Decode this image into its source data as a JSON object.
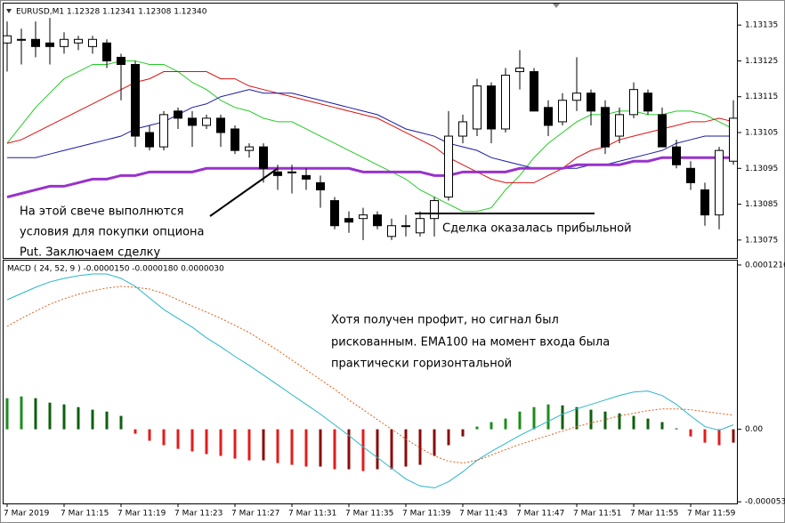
{
  "chart_data": [
    {
      "type": "candlestick",
      "title": "EURUSD,M1  1.12328 1.12341 1.12308 1.12340",
      "categories": [
        "7 Mar 2019",
        null,
        null,
        null,
        "7 Mar 11:15",
        null,
        null,
        null,
        "7 Mar 11:19",
        null,
        null,
        null,
        "7 Mar 11:23",
        null,
        null,
        null,
        "7 Mar 11:27",
        null,
        null,
        null,
        "7 Mar 11:31",
        null,
        null,
        null,
        "7 Mar 11:35",
        null,
        null,
        null,
        "7 Mar 11:39",
        null,
        null,
        null,
        "7 Mar 11:43",
        null,
        null,
        null,
        "7 Mar 11:47",
        null,
        null,
        null,
        "7 Mar 11:51",
        null,
        null,
        null,
        "7 Mar 11:55",
        null,
        null,
        null,
        "7 Mar 11:59",
        null,
        null,
        null
      ],
      "ohlc": {
        "open": [
          1.1313,
          1.13131,
          1.13131,
          1.1313,
          1.13129,
          1.1313,
          1.13129,
          1.1313,
          1.13126,
          1.13124,
          1.13105,
          1.13101,
          1.13111,
          1.13109,
          1.13107,
          1.13109,
          1.13106,
          1.131,
          1.13101,
          1.13094,
          1.13094,
          1.13093,
          1.13091,
          1.13086,
          1.13081,
          1.13081,
          1.13082,
          1.13076,
          1.13079,
          1.13077,
          1.13081,
          1.13087,
          1.13104,
          1.13106,
          1.13118,
          1.13106,
          1.13122,
          1.13122,
          1.13112,
          1.13108,
          1.13114,
          1.13116,
          1.13112,
          1.13104,
          1.1311,
          1.13116,
          1.1311,
          1.13101,
          1.13095,
          1.13089,
          1.13082,
          1.13097
        ],
        "high": [
          1.13136,
          1.13134,
          1.13136,
          1.13137,
          1.13133,
          1.13132,
          1.13132,
          1.13131,
          1.13127,
          1.13125,
          1.13107,
          1.13111,
          1.13112,
          1.13111,
          1.1311,
          1.1311,
          1.13107,
          1.13102,
          1.13102,
          1.13096,
          1.13096,
          1.13095,
          1.13093,
          1.13087,
          1.13083,
          1.13084,
          1.13083,
          1.13081,
          1.13082,
          1.13083,
          1.13087,
          1.13111,
          1.1311,
          1.1312,
          1.13119,
          1.13123,
          1.13128,
          1.13123,
          1.13114,
          1.13116,
          1.13126,
          1.13117,
          1.13114,
          1.13112,
          1.13119,
          1.13117,
          1.13112,
          1.13103,
          1.13097,
          1.13091,
          1.13101,
          1.13114
        ],
        "low": [
          1.13122,
          1.13124,
          1.13126,
          1.13124,
          1.13127,
          1.13128,
          1.13127,
          1.13123,
          1.13114,
          1.13101,
          1.131,
          1.131,
          1.13106,
          1.13101,
          1.13106,
          1.13101,
          1.13099,
          1.13098,
          1.13091,
          1.13089,
          1.13088,
          1.13089,
          1.13084,
          1.13078,
          1.13077,
          1.13075,
          1.13078,
          1.13075,
          1.13076,
          1.13076,
          1.13076,
          1.13086,
          1.13102,
          1.13104,
          1.13102,
          1.13105,
          1.13117,
          1.13111,
          1.13104,
          1.13107,
          1.13111,
          1.13107,
          1.13099,
          1.13102,
          1.13109,
          1.1311,
          1.13101,
          1.13095,
          1.13089,
          1.13079,
          1.13078,
          1.13096
        ],
        "close": [
          1.13132,
          1.13131,
          1.13129,
          1.13129,
          1.13131,
          1.13131,
          1.13131,
          1.13125,
          1.13124,
          1.13104,
          1.13101,
          1.1311,
          1.13109,
          1.13107,
          1.13109,
          1.13105,
          1.131,
          1.13101,
          1.13095,
          1.13093,
          1.13094,
          1.13092,
          1.13089,
          1.13079,
          1.1308,
          1.13082,
          1.13079,
          1.13079,
          1.13079,
          1.13081,
          1.13086,
          1.13104,
          1.13108,
          1.13118,
          1.13106,
          1.13121,
          1.13123,
          1.13111,
          1.13107,
          1.13114,
          1.13116,
          1.13111,
          1.13101,
          1.1311,
          1.13117,
          1.13111,
          1.13101,
          1.13096,
          1.13091,
          1.13082,
          1.131,
          1.13109
        ]
      },
      "up_color": "#ffffff",
      "down_color": "#000000",
      "lines": [
        {
          "color": "#22cc22",
          "values": [
            1.13102,
            1.13107,
            1.13112,
            1.13116,
            1.1312,
            1.13122,
            1.13124,
            1.13124,
            1.13125,
            1.13125,
            1.13124,
            1.13124,
            1.13122,
            1.13119,
            1.13117,
            1.13114,
            1.13112,
            1.13111,
            1.13109,
            1.13108,
            1.13108,
            1.13106,
            1.13104,
            1.13102,
            1.131,
            1.13098,
            1.13096,
            1.13094,
            1.13092,
            1.13089,
            1.13087,
            1.13085,
            1.13083,
            1.13083,
            1.13084,
            1.13089,
            1.13093,
            1.13098,
            1.13102,
            1.13105,
            1.13108,
            1.1311,
            1.1311,
            1.13111,
            1.13111,
            1.1311,
            1.1311,
            1.13111,
            1.13111,
            1.1311,
            1.13108,
            1.13106
          ]
        },
        {
          "color": "#dd1111",
          "values": [
            1.13102,
            1.13103,
            1.13105,
            1.13107,
            1.13109,
            1.13111,
            1.13113,
            1.13115,
            1.13117,
            1.13119,
            1.1312,
            1.13122,
            1.13122,
            1.13122,
            1.13122,
            1.1312,
            1.1312,
            1.13118,
            1.13117,
            1.13116,
            1.13115,
            1.13114,
            1.13113,
            1.13112,
            1.13111,
            1.1311,
            1.13109,
            1.13107,
            1.13105,
            1.13103,
            1.13101,
            1.13098,
            1.13096,
            1.13094,
            1.13092,
            1.13091,
            1.13091,
            1.13091,
            1.13093,
            1.13095,
            1.13098,
            1.131,
            1.13101,
            1.13103,
            1.13104,
            1.13105,
            1.13106,
            1.13107,
            1.13108,
            1.13108,
            1.13109,
            1.13108
          ]
        },
        {
          "color": "#1a1aa8",
          "values": [
            1.13098,
            1.13098,
            1.13098,
            1.13099,
            1.131,
            1.13101,
            1.13102,
            1.13103,
            1.13104,
            1.13106,
            1.13107,
            1.13108,
            1.1311,
            1.13112,
            1.13113,
            1.13115,
            1.13116,
            1.13117,
            1.13116,
            1.13116,
            1.13116,
            1.13115,
            1.13114,
            1.13113,
            1.13112,
            1.13111,
            1.1311,
            1.13108,
            1.13106,
            1.13105,
            1.13104,
            1.13102,
            1.13101,
            1.131,
            1.13098,
            1.13097,
            1.13096,
            1.13095,
            1.13095,
            1.13095,
            1.13095,
            1.13096,
            1.13096,
            1.13097,
            1.13098,
            1.13099,
            1.131,
            1.13102,
            1.13103,
            1.13104,
            1.13104,
            1.13104
          ]
        },
        {
          "color": "#9932cc",
          "width": 3,
          "values": [
            1.13087,
            1.13088,
            1.13089,
            1.1309,
            1.1309,
            1.13091,
            1.13092,
            1.13092,
            1.13093,
            1.13093,
            1.13094,
            1.13094,
            1.13094,
            1.13094,
            1.13095,
            1.13095,
            1.13095,
            1.13095,
            1.13095,
            1.13095,
            1.13095,
            1.13095,
            1.13095,
            1.13095,
            1.13095,
            1.13094,
            1.13094,
            1.13094,
            1.13094,
            1.13094,
            1.13093,
            1.13093,
            1.13094,
            1.13094,
            1.13094,
            1.13094,
            1.13095,
            1.13095,
            1.13095,
            1.13095,
            1.13096,
            1.13096,
            1.13096,
            1.13096,
            1.13097,
            1.13097,
            1.13098,
            1.13098,
            1.13098,
            1.13098,
            1.13098,
            1.13098
          ]
        }
      ],
      "ylim": [
        1.1307,
        1.13141
      ],
      "yticks": [
        1.13135,
        1.13125,
        1.13115,
        1.13105,
        1.13095,
        1.13085,
        1.13075
      ],
      "annotations": [
        "На этой свече выполнются",
        "условия для покупки опциона",
        "Put. Заключаем сделку",
        "Сделка оказалась прибыльной"
      ]
    },
    {
      "type": "macd",
      "title": "MACD ( 24, 52, 9 ) -0.0000150 -0.0000180 0.0000030",
      "histogram": [
        2.3e-05,
        2.43e-05,
        2.3e-05,
        1.97e-05,
        1.84e-05,
        1.64e-05,
        1.45e-05,
        1.31e-05,
        9.9e-06,
        -3.3e-06,
        -8.5e-06,
        -1.18e-05,
        -1.45e-05,
        -1.64e-05,
        -1.84e-05,
        -1.97e-05,
        -2.17e-05,
        -2.3e-05,
        -2.3e-05,
        -2.5e-05,
        -2.63e-05,
        -2.76e-05,
        -2.76e-05,
        -2.96e-05,
        -2.96e-05,
        -3.09e-05,
        -2.96e-05,
        -2.96e-05,
        -2.76e-05,
        -2.63e-05,
        -1.97e-05,
        -1.18e-05,
        -5.3e-06,
        2e-06,
        5.3e-06,
        7.9e-06,
        1.31e-05,
        1.64e-05,
        1.84e-05,
        1.77e-05,
        1.64e-05,
        1.45e-05,
        1.31e-05,
        1.18e-05,
        9.9e-06,
        7.9e-06,
        5.3e-06,
        7e-07,
        -5.3e-06,
        -9.9e-06,
        -1.18e-05,
        -9.9e-06
      ],
      "histogram_colors": {
        "up_rising": "#1e8c1e",
        "up_falling": "#0d5f0d",
        "down_falling": "#e31b1b",
        "down_rising": "#8b0a0a"
      },
      "series": [
        {
          "color": "#2ab6c8",
          "values": [
            9.59e-05,
            0.0001005,
            0.0001051,
            0.0001091,
            0.0001117,
            0.0001137,
            0.000115,
            0.000115,
            0.0001117,
            0.0001058,
            9.72e-05,
            8.87e-05,
            8.21e-05,
            7.56e-05,
            6.77e-05,
            6.11e-05,
            5.39e-05,
            4.73e-05,
            4.01e-05,
            3.29e-05,
            2.56e-05,
            1.84e-05,
            1.12e-05,
            3.3e-06,
            -4.6e-06,
            -1.31e-05,
            -2.1e-05,
            -2.89e-05,
            -3.68e-05,
            -4.2e-05,
            -4.34e-05,
            -3.88e-05,
            -3.15e-05,
            -2.3e-05,
            -1.64e-05,
            -1.05e-05,
            -4.6e-06,
            7e-07,
            5.9e-06,
            1.12e-05,
            1.51e-05,
            1.84e-05,
            2.17e-05,
            2.5e-05,
            2.76e-05,
            2.83e-05,
            2.5e-05,
            1.84e-05,
            9.9e-06,
            2e-06,
            -7e-07,
            3.3e-06
          ]
        },
        {
          "color": "#e0601e",
          "dashed": true,
          "values": [
            7.62e-05,
            8.21e-05,
            8.74e-05,
            9.26e-05,
            9.66e-05,
            9.99e-05,
            0.0001025,
            0.0001045,
            0.0001058,
            0.0001051,
            0.0001038,
            0.0001005,
            9.59e-05,
            9.13e-05,
            8.67e-05,
            8.21e-05,
            7.69e-05,
            7.16e-05,
            6.5e-05,
            5.85e-05,
            5.12e-05,
            4.4e-05,
            3.68e-05,
            2.96e-05,
            2.17e-05,
            1.45e-05,
            7.2e-06,
            0,
            -7.2e-06,
            -1.38e-05,
            -1.97e-05,
            -2.37e-05,
            -2.5e-05,
            -2.3e-05,
            -1.91e-05,
            -1.51e-05,
            -1.12e-05,
            -7.9e-06,
            -4.6e-06,
            -1.3e-06,
            2e-06,
            4.6e-06,
            7.2e-06,
            9.9e-06,
            1.18e-05,
            1.38e-05,
            1.51e-05,
            1.51e-05,
            1.45e-05,
            1.31e-05,
            1.18e-05,
            1.05e-05
          ]
        }
      ],
      "ylim": [
        -5.49e-05,
        0.0001242
      ],
      "yticks": [
        0.0001216,
        {
          "value": 0,
          "label": "0.00"
        },
        -5.37e-05
      ],
      "annotations": [
        "Хотя получен профит, но сигнал был",
        "рискованным. EMA100 на момент входа была",
        "практически горизонтальной"
      ]
    }
  ]
}
